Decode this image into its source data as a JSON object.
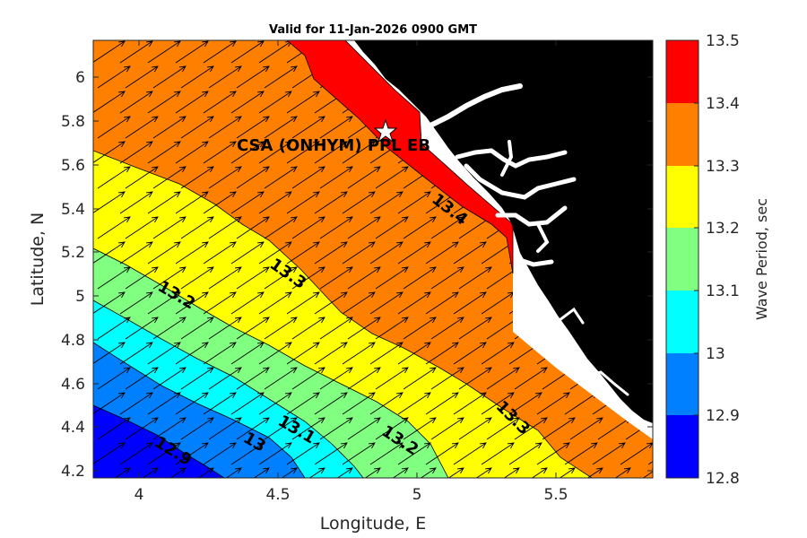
{
  "title": "Valid for 11-Jan-2026 0900 GMT",
  "xlabel": "Longitude, E",
  "ylabel": "Latitude, N",
  "colorbar_label": "Wave Period, sec",
  "site_label": "CSA (ONHYM) PPL EB",
  "x_ticks": [
    "4",
    "4.5",
    "5",
    "5.5"
  ],
  "y_ticks": [
    "6",
    "5.8",
    "5.6",
    "5.4",
    "5.2",
    "5",
    "4.8",
    "4.6",
    "4.4",
    "4.2"
  ],
  "colorbar_ticks": [
    "13.5",
    "13.4",
    "13.3",
    "13.2",
    "13.1",
    "13",
    "12.9",
    "12.8"
  ],
  "contour_labels": {
    "c134": "13.4",
    "c133a": "13.3",
    "c133b": "13.3",
    "c132a": "13.2",
    "c132b": "13.2",
    "c131": "13.1",
    "c13": "13",
    "c129": "12.9"
  },
  "chart_data": {
    "type": "heatmap",
    "title": "Valid for 11-Jan-2026 0900 GMT",
    "xlabel": "Longitude, E",
    "ylabel": "Latitude, N",
    "xlim": [
      3.82,
      5.84
    ],
    "ylim": [
      4.17,
      6.17
    ],
    "site": {
      "name": "CSA (ONHYM) PPL EB",
      "lon": 4.88,
      "lat": 5.75
    },
    "colorbar": {
      "label": "Wave Period, sec",
      "range": [
        12.8,
        13.5
      ],
      "levels": [
        {
          "from": 12.8,
          "to": 12.9,
          "color": "#0000ff"
        },
        {
          "from": 12.9,
          "to": 13.0,
          "color": "#0080ff"
        },
        {
          "from": 13.0,
          "to": 13.1,
          "color": "#00ffff"
        },
        {
          "from": 13.1,
          "to": 13.2,
          "color": "#80ff80"
        },
        {
          "from": 13.2,
          "to": 13.3,
          "color": "#ffff00"
        },
        {
          "from": 13.3,
          "to": 13.4,
          "color": "#ff8000"
        },
        {
          "from": 13.4,
          "to": 13.5,
          "color": "#ff0000"
        }
      ]
    },
    "contour_labels": [
      "12.9",
      "13",
      "13.1",
      "13.2",
      "13.3",
      "13.4"
    ],
    "vector_direction": "toward north-east"
  }
}
